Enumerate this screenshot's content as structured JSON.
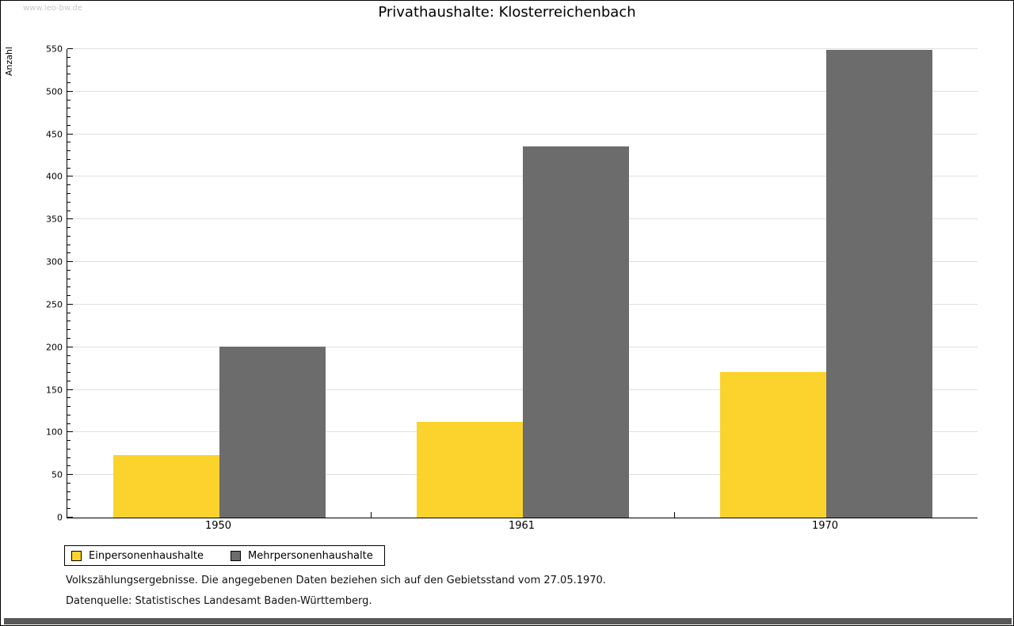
{
  "page": {
    "watermark": "www.leo-bw.de",
    "bottom_bar_color": "#58585a"
  },
  "chart_data": {
    "type": "bar",
    "title": "Privathaushalte: Klosterreichenbach",
    "categories": [
      "1950",
      "1961",
      "1970"
    ],
    "series": [
      {
        "name": "Einpersonenhaushalte",
        "color": "#fcd32d",
        "values": [
          73,
          112,
          171
        ]
      },
      {
        "name": "Mehrpersonenhaushalte",
        "color": "#6c6c6c",
        "values": [
          201,
          436,
          549
        ]
      }
    ],
    "xlabel": "",
    "ylabel": "Anzahl",
    "ylim": [
      0,
      550
    ],
    "ytick_major": 50,
    "ytick_minor": 10,
    "grid": "horizontal-major",
    "gridline_color": "#e0e0e0",
    "legend_position": "bottom-left"
  },
  "footnotes": {
    "line1": "Volkszählungsergebnisse. Die angegebenen Daten beziehen sich auf den Gebietsstand vom 27.05.1970.",
    "line2": "Datenquelle: Statistisches Landesamt Baden-Württemberg."
  }
}
